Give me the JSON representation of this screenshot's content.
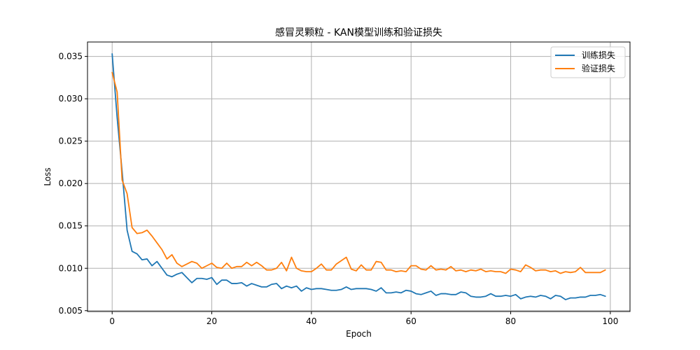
{
  "chart_data": {
    "type": "line",
    "title": "感冒灵颗粒 - KAN模型训练和验证损失",
    "xlabel": "Epoch",
    "ylabel": "Loss",
    "xlim": [
      -4.95,
      103.95
    ],
    "ylim": [
      0.0049,
      0.0367
    ],
    "xticks": [
      0,
      20,
      40,
      60,
      80,
      100
    ],
    "xtick_labels": [
      "0",
      "20",
      "40",
      "60",
      "80",
      "100"
    ],
    "yticks": [
      0.005,
      0.01,
      0.015,
      0.02,
      0.025,
      0.03,
      0.035
    ],
    "ytick_labels": [
      "0.005",
      "0.010",
      "0.015",
      "0.020",
      "0.025",
      "0.030",
      "0.035"
    ],
    "grid": true,
    "legend_position": "top-right",
    "series": [
      {
        "name": "训练损失",
        "color": "#1f77b4",
        "x": [
          0,
          1,
          2,
          3,
          4,
          5,
          6,
          7,
          8,
          9,
          10,
          11,
          12,
          13,
          14,
          15,
          16,
          17,
          18,
          19,
          20,
          21,
          22,
          23,
          24,
          25,
          26,
          27,
          28,
          29,
          30,
          31,
          32,
          33,
          34,
          35,
          36,
          37,
          38,
          39,
          40,
          41,
          42,
          43,
          44,
          45,
          46,
          47,
          48,
          49,
          50,
          51,
          52,
          53,
          54,
          55,
          56,
          57,
          58,
          59,
          60,
          61,
          62,
          63,
          64,
          65,
          66,
          67,
          68,
          69,
          70,
          71,
          72,
          73,
          74,
          75,
          76,
          77,
          78,
          79,
          80,
          81,
          82,
          83,
          84,
          85,
          86,
          87,
          88,
          89,
          90,
          91,
          92,
          93,
          94,
          95,
          96,
          97,
          98,
          99
        ],
        "y": [
          0.0353,
          0.0278,
          0.0214,
          0.0145,
          0.012,
          0.0117,
          0.011,
          0.0111,
          0.0103,
          0.0108,
          0.01,
          0.0092,
          0.009,
          0.0093,
          0.0095,
          0.0089,
          0.0083,
          0.0088,
          0.0088,
          0.0087,
          0.0089,
          0.0081,
          0.0086,
          0.0086,
          0.0082,
          0.0082,
          0.0083,
          0.0079,
          0.0082,
          0.008,
          0.0078,
          0.0078,
          0.0081,
          0.0082,
          0.0076,
          0.0079,
          0.0077,
          0.0079,
          0.0073,
          0.0077,
          0.0075,
          0.0076,
          0.0076,
          0.0075,
          0.0074,
          0.0074,
          0.0075,
          0.0078,
          0.0075,
          0.0076,
          0.0076,
          0.0076,
          0.0075,
          0.0073,
          0.0077,
          0.0071,
          0.0071,
          0.0072,
          0.0071,
          0.0074,
          0.0073,
          0.007,
          0.0069,
          0.0071,
          0.0073,
          0.0068,
          0.007,
          0.007,
          0.0069,
          0.0069,
          0.0072,
          0.0071,
          0.0067,
          0.0066,
          0.0066,
          0.0067,
          0.007,
          0.0067,
          0.0067,
          0.0068,
          0.0067,
          0.0069,
          0.0064,
          0.0066,
          0.0067,
          0.0066,
          0.0068,
          0.0067,
          0.0064,
          0.0068,
          0.0067,
          0.0063,
          0.0065,
          0.0065,
          0.0066,
          0.0066,
          0.0068,
          0.0068,
          0.0069,
          0.0067
        ]
      },
      {
        "name": "验证损失",
        "color": "#ff7f0e",
        "x": [
          0,
          1,
          2,
          3,
          4,
          5,
          6,
          7,
          8,
          9,
          10,
          11,
          12,
          13,
          14,
          15,
          16,
          17,
          18,
          19,
          20,
          21,
          22,
          23,
          24,
          25,
          26,
          27,
          28,
          29,
          30,
          31,
          32,
          33,
          34,
          35,
          36,
          37,
          38,
          39,
          40,
          41,
          42,
          43,
          44,
          45,
          46,
          47,
          48,
          49,
          50,
          51,
          52,
          53,
          54,
          55,
          56,
          57,
          58,
          59,
          60,
          61,
          62,
          63,
          64,
          65,
          66,
          67,
          68,
          69,
          70,
          71,
          72,
          73,
          74,
          75,
          76,
          77,
          78,
          79,
          80,
          81,
          82,
          83,
          84,
          85,
          86,
          87,
          88,
          89,
          90,
          91,
          92,
          93,
          94,
          95,
          96,
          97,
          98,
          99
        ],
        "y": [
          0.0331,
          0.0308,
          0.0204,
          0.0188,
          0.0148,
          0.0141,
          0.0142,
          0.0145,
          0.0138,
          0.013,
          0.0122,
          0.0111,
          0.0116,
          0.0106,
          0.0102,
          0.0105,
          0.0108,
          0.0106,
          0.01,
          0.0103,
          0.0106,
          0.0101,
          0.01,
          0.0106,
          0.01,
          0.0102,
          0.0102,
          0.0107,
          0.0103,
          0.0107,
          0.0103,
          0.0098,
          0.0098,
          0.01,
          0.0107,
          0.0097,
          0.0113,
          0.01,
          0.0097,
          0.0096,
          0.0096,
          0.01,
          0.0105,
          0.0098,
          0.0098,
          0.0105,
          0.0109,
          0.0113,
          0.0099,
          0.0097,
          0.0104,
          0.0098,
          0.0098,
          0.0108,
          0.0107,
          0.0098,
          0.0098,
          0.0096,
          0.0097,
          0.0096,
          0.0103,
          0.0103,
          0.0099,
          0.0098,
          0.0103,
          0.0098,
          0.0099,
          0.0098,
          0.0102,
          0.0097,
          0.0098,
          0.0096,
          0.0098,
          0.0097,
          0.0099,
          0.0096,
          0.0097,
          0.0096,
          0.0096,
          0.0094,
          0.0099,
          0.0098,
          0.0096,
          0.0104,
          0.0101,
          0.0097,
          0.0098,
          0.0098,
          0.0096,
          0.0097,
          0.0094,
          0.0096,
          0.0095,
          0.0096,
          0.0101,
          0.0095,
          0.0095,
          0.0095,
          0.0095,
          0.0098
        ]
      }
    ]
  }
}
